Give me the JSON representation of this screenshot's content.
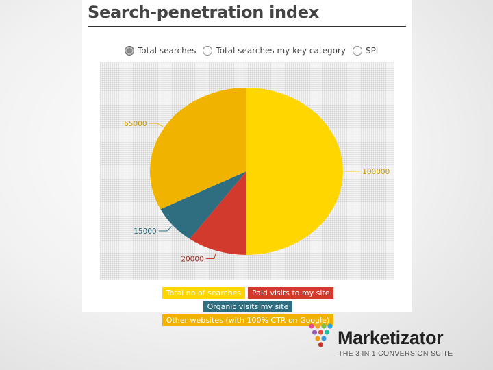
{
  "title": "Search-penetration index",
  "radio_options": [
    {
      "label": "Total searches",
      "selected": true
    },
    {
      "label": "Total searches my key category",
      "selected": false
    },
    {
      "label": "SPI",
      "selected": false
    }
  ],
  "chart_data": {
    "type": "pie",
    "title": "",
    "slices": [
      {
        "name": "Total no of searches",
        "value": 100000,
        "label": "100000",
        "color": "#FFD600"
      },
      {
        "name": "Paid visits to my site",
        "value": 20000,
        "label": "20000",
        "color": "#D23A2E"
      },
      {
        "name": "Organic visits my site",
        "value": 15000,
        "label": "15000",
        "color": "#2E6E80"
      },
      {
        "name": "Other websites (with 100% CTR on Google)",
        "value": 65000,
        "label": "65000",
        "color": "#F0B400"
      }
    ],
    "legend_placement": "bottom",
    "start_angle_deg": 0,
    "direction": "clockwise"
  },
  "logo": {
    "name": "Marketizator",
    "tagline": "THE 3 IN 1 CONVERSION SUITE",
    "dot_colors": [
      "#e84b8a",
      "#f6a623",
      "#7ac143",
      "#2aa9e0",
      "#9b59b6",
      "#e74c3c",
      "#1abc9c",
      "#f39c12",
      "#3498db",
      "#c0392b"
    ]
  }
}
